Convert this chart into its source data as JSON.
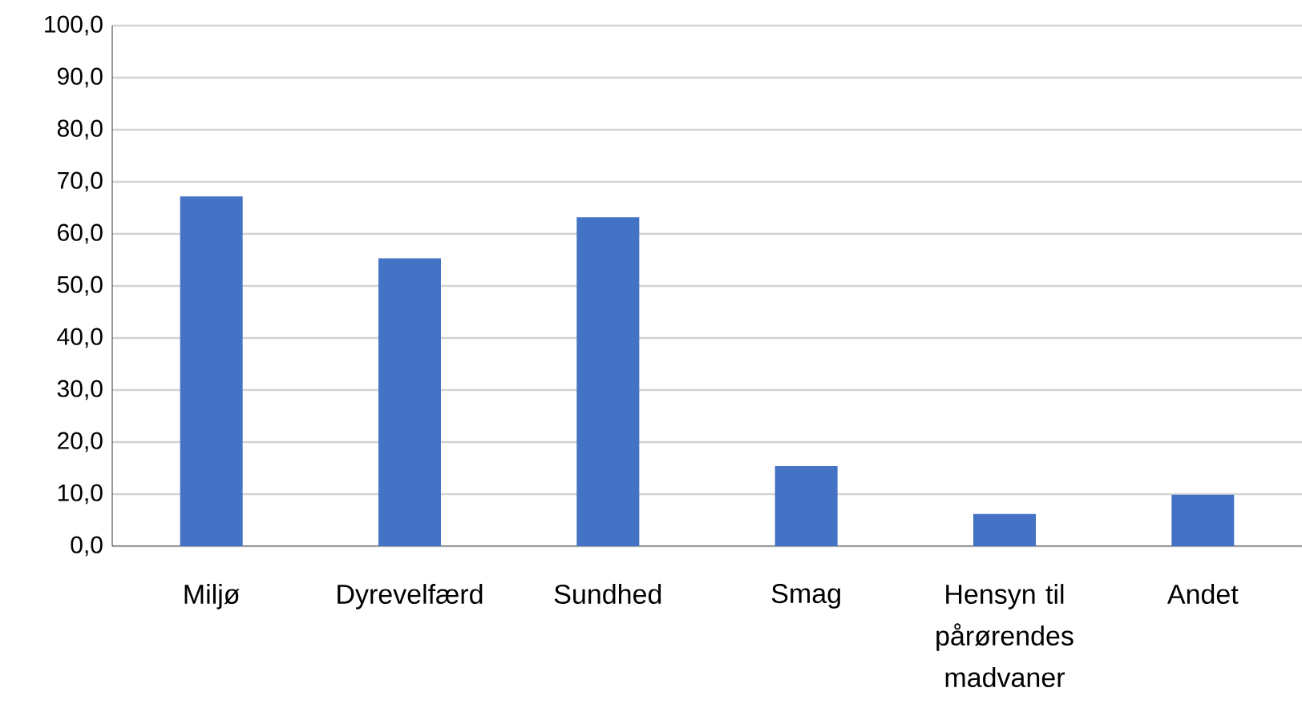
{
  "chart_data": {
    "type": "bar",
    "categories": [
      "Miljø",
      "Dyrevelfærd",
      "Sundhed",
      "Smag",
      "Hensyn til pårørendes madvaner",
      "Andet"
    ],
    "values": [
      67.2,
      55.3,
      63.2,
      15.4,
      6.2,
      9.9
    ],
    "color": "#4472c4",
    "ylim": [
      0,
      100
    ],
    "yticks": [
      {
        "value": 0,
        "label": "0,0"
      },
      {
        "value": 10,
        "label": "10,0"
      },
      {
        "value": 20,
        "label": "20,0"
      },
      {
        "value": 30,
        "label": "30,0"
      },
      {
        "value": 40,
        "label": "40,0"
      },
      {
        "value": 50,
        "label": "50,0"
      },
      {
        "value": 60,
        "label": "60,0"
      },
      {
        "value": 70,
        "label": "70,0"
      },
      {
        "value": 80,
        "label": "80,0"
      },
      {
        "value": 90,
        "label": "90,0"
      },
      {
        "value": 100,
        "label": "100,0"
      }
    ],
    "grid": "y"
  }
}
